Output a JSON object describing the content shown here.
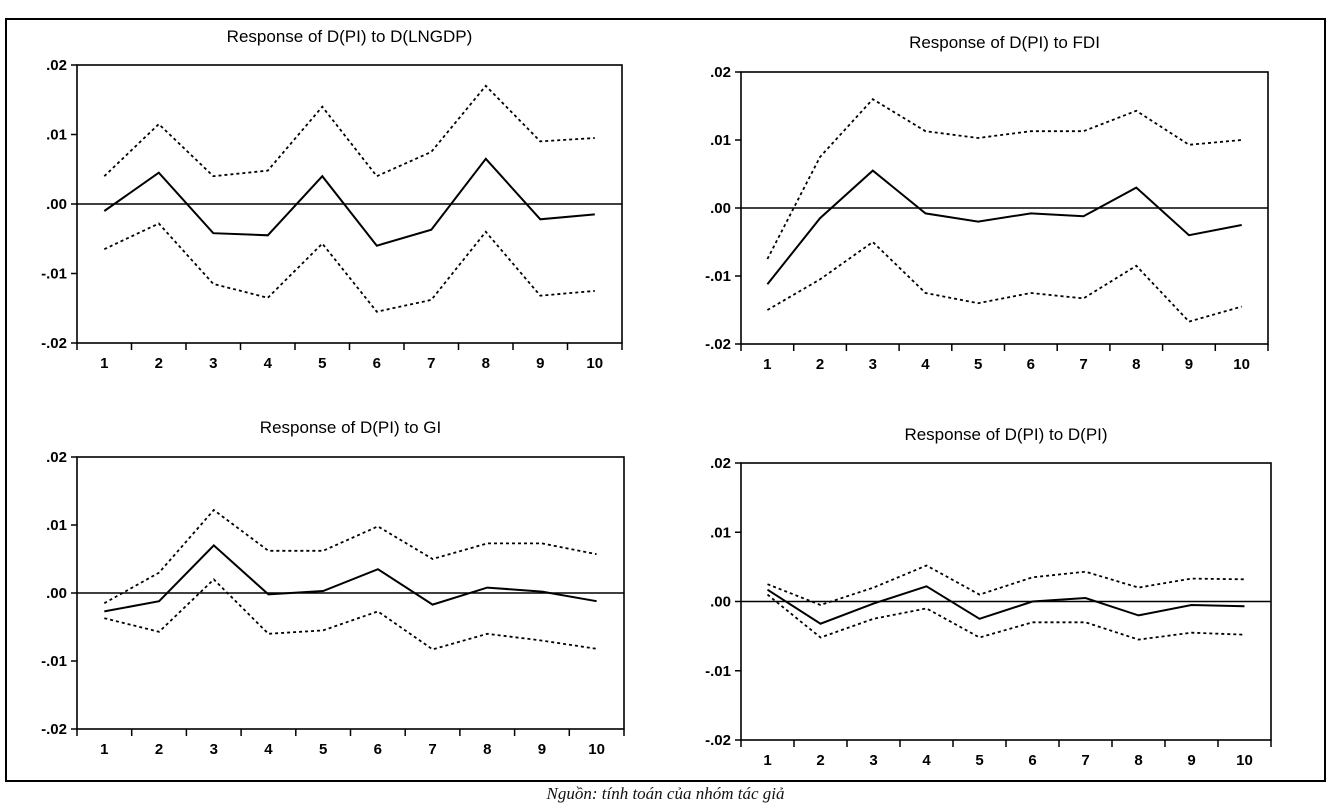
{
  "source_note": "Nguồn: tính toán của nhóm tác giả",
  "chart_data": [
    {
      "type": "line",
      "title": "Response of D(PI) to D(LNGDP)",
      "categories": [
        1,
        2,
        3,
        4,
        5,
        6,
        7,
        8,
        9,
        10
      ],
      "yticks": [
        ".02",
        ".01",
        ".00",
        "-.01",
        "-.02"
      ],
      "ylim": [
        -0.02,
        0.02
      ],
      "series": [
        {
          "role": "response",
          "values": [
            -0.001,
            0.0045,
            -0.0042,
            -0.0045,
            0.004,
            -0.006,
            -0.0037,
            0.0065,
            -0.0022,
            -0.0015
          ]
        },
        {
          "role": "upper",
          "values": [
            0.004,
            0.0115,
            0.004,
            0.0048,
            0.014,
            0.004,
            0.0075,
            0.017,
            0.009,
            0.0095
          ]
        },
        {
          "role": "lower",
          "values": [
            -0.0065,
            -0.0028,
            -0.0115,
            -0.0135,
            -0.0057,
            -0.0155,
            -0.0138,
            -0.004,
            -0.0132,
            -0.0125
          ]
        }
      ]
    },
    {
      "type": "line",
      "title": "Response of D(PI) to FDI",
      "categories": [
        1,
        2,
        3,
        4,
        5,
        6,
        7,
        8,
        9,
        10
      ],
      "yticks": [
        ".02",
        ".01",
        ".00",
        "-.01",
        "-.02"
      ],
      "ylim": [
        -0.02,
        0.02
      ],
      "series": [
        {
          "role": "response",
          "values": [
            -0.0112,
            -0.0015,
            0.0055,
            -0.0008,
            -0.002,
            -0.0008,
            -0.0012,
            0.003,
            -0.004,
            -0.0025
          ]
        },
        {
          "role": "upper",
          "values": [
            -0.0075,
            0.0075,
            0.016,
            0.0113,
            0.0103,
            0.0113,
            0.0113,
            0.0143,
            0.0093,
            0.01
          ]
        },
        {
          "role": "lower",
          "values": [
            -0.015,
            -0.0105,
            -0.005,
            -0.0125,
            -0.014,
            -0.0125,
            -0.0133,
            -0.0085,
            -0.0167,
            -0.0145
          ]
        }
      ]
    },
    {
      "type": "line",
      "title": "Response of D(PI) to GI",
      "categories": [
        1,
        2,
        3,
        4,
        5,
        6,
        7,
        8,
        9,
        10
      ],
      "yticks": [
        ".02",
        ".01",
        ".00",
        "-.01",
        "-.02"
      ],
      "ylim": [
        -0.02,
        0.02
      ],
      "series": [
        {
          "role": "response",
          "values": [
            -0.0027,
            -0.0012,
            0.007,
            -0.0002,
            0.0003,
            0.0035,
            -0.0017,
            0.0008,
            0.0002,
            -0.0012
          ]
        },
        {
          "role": "upper",
          "values": [
            -0.0015,
            0.003,
            0.0122,
            0.0062,
            0.0062,
            0.0098,
            0.005,
            0.0073,
            0.0073,
            0.0057
          ]
        },
        {
          "role": "lower",
          "values": [
            -0.0037,
            -0.0057,
            0.002,
            -0.006,
            -0.0055,
            -0.0027,
            -0.0083,
            -0.006,
            -0.007,
            -0.0082
          ]
        }
      ]
    },
    {
      "type": "line",
      "title": "Response of D(PI) to D(PI)",
      "categories": [
        1,
        2,
        3,
        4,
        5,
        6,
        7,
        8,
        9,
        10
      ],
      "yticks": [
        ".02",
        ".01",
        ".00",
        "-.01",
        "-.02"
      ],
      "ylim": [
        -0.02,
        0.02
      ],
      "series": [
        {
          "role": "response",
          "values": [
            0.0017,
            -0.0032,
            -0.0003,
            0.0022,
            -0.0025,
            0.0,
            0.0005,
            -0.002,
            -0.0005,
            -0.0007
          ]
        },
        {
          "role": "upper",
          "values": [
            0.0025,
            -0.0005,
            0.002,
            0.0052,
            0.001,
            0.0035,
            0.0043,
            0.002,
            0.0033,
            0.0032
          ]
        },
        {
          "role": "lower",
          "values": [
            0.001,
            -0.0052,
            -0.0025,
            -0.001,
            -0.0052,
            -0.003,
            -0.003,
            -0.0055,
            -0.0045,
            -0.0048
          ]
        }
      ]
    }
  ]
}
